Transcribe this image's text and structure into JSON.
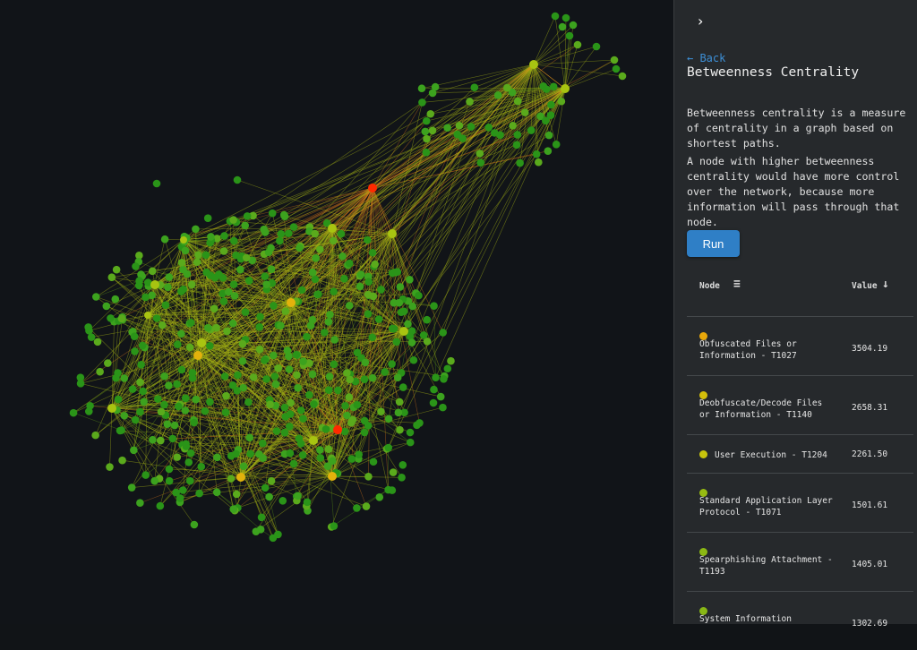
{
  "panel": {
    "collapse_icon": "chevron-right",
    "back_label": "← Back",
    "title": "Betweenness Centrality",
    "description_1": "Betweenness centrality is a measure of centrality in a graph based on shortest paths.",
    "description_2": "A node with higher betweenness centrality would have more control over the network, because more information will pass through that node.",
    "run_label": "Run",
    "table": {
      "col_node": "Node",
      "col_node_icon": "filter-icon",
      "col_value": "Value",
      "col_value_icon": "sort-descending-arrow",
      "rows": [
        {
          "name": "Obfuscated Files or Information - T1027",
          "value": "3504.19",
          "color": "#e8a70a"
        },
        {
          "name": "Deobfuscate/Decode Files or Information - T1140",
          "value": "2658.31",
          "color": "#d4bf0a"
        },
        {
          "name": "User Execution - T1204",
          "value": "2261.50",
          "color": "#c8c40c"
        },
        {
          "name": "Standard Application Layer Protocol - T1071",
          "value": "1501.61",
          "color": "#97bb12"
        },
        {
          "name": "Spearphishing Attachment - T1193",
          "value": "1405.01",
          "color": "#8cb914"
        },
        {
          "name": "System Information",
          "value": "1302.69",
          "color": "#88b716"
        }
      ]
    }
  },
  "graph": {
    "node_color": "#2e9a1c",
    "high_color": "#ff2a00",
    "mid_color": "#e3b20c",
    "low_color": "#a8c411",
    "edge_color": "#8fae18",
    "background": "#111418"
  }
}
